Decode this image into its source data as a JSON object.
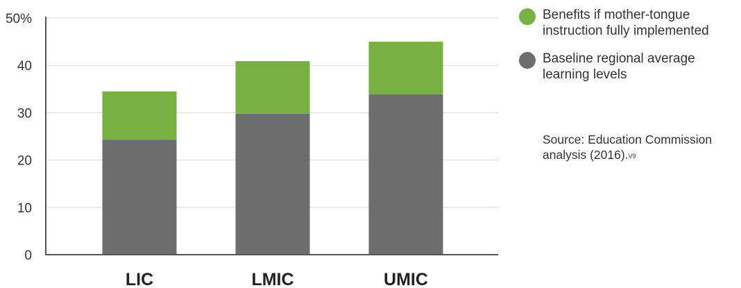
{
  "chart_data": {
    "type": "bar",
    "stacked": true,
    "categories": [
      "LIC",
      "LMIC",
      "UMIC"
    ],
    "series": [
      {
        "name": "Baseline regional average learning levels",
        "color": "#6d6d6d",
        "values": [
          24.3,
          29.8,
          33.9
        ]
      },
      {
        "name": "Benefits if mother-tongue instruction fully implemented",
        "color": "#78b042",
        "values": [
          10.2,
          11.1,
          11.1
        ]
      }
    ],
    "ylim": [
      0,
      50
    ],
    "yticks": [
      0,
      10,
      20,
      30,
      40,
      50
    ],
    "ytick_labels": [
      "0",
      "10",
      "20",
      "30",
      "40",
      "50%"
    ],
    "grid": true,
    "legend_position": "right"
  },
  "legend": {
    "items": [
      {
        "label": "Benefits if mother-tongue instruction fully implemented",
        "color": "#78b042"
      },
      {
        "label": "Baseline regional average learning levels",
        "color": "#6d6d6d"
      }
    ]
  },
  "source": {
    "text": "Source: Education Commission analysis (2016).",
    "superscript": "V9"
  }
}
